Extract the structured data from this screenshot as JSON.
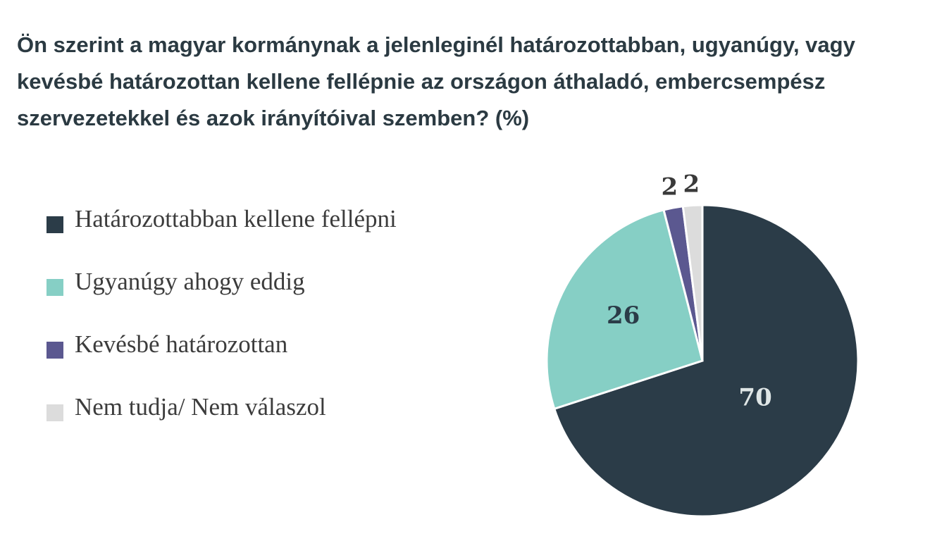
{
  "chart_data": {
    "type": "pie",
    "title": "Ön szerint a magyar kormánynak a jelenleginél határozottabban, ugyanúgy, vagy kevésbé határozottan kellene fellépnie az országon áthaladó, embercsempész szervezetekkel és azok irányítóival szemben? (%)",
    "legend_position": "left",
    "slices": [
      {
        "label": "Határozottabban kellene fellépni",
        "value": 70,
        "value_label": "70",
        "color": "#2b3c48",
        "label_color": "#dfe6e6"
      },
      {
        "label": "Ugyanúgy ahogy eddig",
        "value": 26,
        "value_label": "26",
        "color": "#86cfc5",
        "label_color": "#2b3c48"
      },
      {
        "label": "Kevésbé határozottan",
        "value": 2,
        "value_label": "2",
        "color": "#5b5890",
        "label_color": "#3a3a3a"
      },
      {
        "label": "Nem tudja/ Nem válaszol",
        "value": 2,
        "value_label": "2",
        "color": "#dcdcdc",
        "label_color": "#3a3a3a"
      }
    ]
  }
}
